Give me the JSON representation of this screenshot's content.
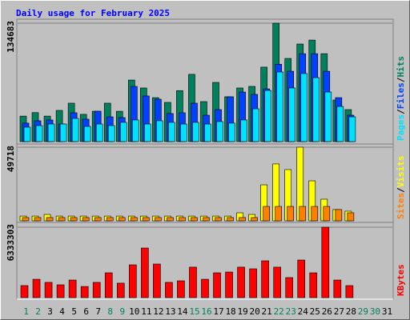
{
  "title": "Daily usage for February 2025",
  "legend_separator": "/",
  "chart_data": [
    {
      "type": "bar",
      "series": [
        {
          "name": "Hits",
          "color": "#00805c",
          "values": [
            29000,
            33000,
            29000,
            35500,
            43700,
            31000,
            34500,
            43700,
            34500,
            70000,
            61000,
            50000,
            44600,
            58000,
            76500,
            45500,
            67300,
            51000,
            61000,
            62800,
            84700,
            134683,
            94600,
            111000,
            115500,
            100000,
            47300,
            36400,
            null,
            null,
            null
          ]
        },
        {
          "name": "Files",
          "color": "#0040ff",
          "values": [
            21000,
            23700,
            24600,
            20000,
            32800,
            25500,
            34600,
            28200,
            27300,
            62800,
            51900,
            48200,
            31900,
            32800,
            43700,
            30000,
            36400,
            51000,
            56400,
            53700,
            60000,
            88000,
            80000,
            100000,
            100000,
            80000,
            50000,
            30000,
            null,
            null,
            null
          ]
        },
        {
          "name": "Pages",
          "color": "#00e0ff",
          "values": [
            16400,
            18200,
            20000,
            20000,
            26400,
            17300,
            20000,
            18200,
            21900,
            24600,
            20000,
            23700,
            21900,
            20000,
            21900,
            20000,
            22800,
            21000,
            24600,
            37300,
            58200,
            79200,
            61000,
            77400,
            72800,
            56400,
            40000,
            28200,
            null,
            null,
            null
          ]
        }
      ],
      "ylim": [
        0,
        134683
      ],
      "yticks": [
        134683
      ]
    },
    {
      "type": "bar",
      "series": [
        {
          "name": "Visits",
          "color": "#ffff00",
          "values": [
            3200,
            3200,
            4300,
            3200,
            3200,
            3200,
            3200,
            3200,
            3200,
            3200,
            3200,
            3200,
            3200,
            3200,
            3200,
            3200,
            3200,
            3200,
            5400,
            4300,
            24300,
            38400,
            34600,
            49718,
            27000,
            14600,
            7600,
            6500,
            null,
            null,
            null
          ]
        },
        {
          "name": "Sites",
          "color": "#ff8000",
          "values": [
            2200,
            2200,
            2200,
            2200,
            2200,
            2200,
            2200,
            2200,
            2200,
            2200,
            2200,
            2200,
            2200,
            2200,
            2200,
            2200,
            2200,
            2200,
            2200,
            2200,
            9700,
            9700,
            9700,
            9700,
            9700,
            9700,
            7600,
            5400,
            null,
            null,
            null
          ]
        }
      ],
      "ylim": [
        0,
        49718
      ],
      "yticks": [
        49718
      ]
    },
    {
      "type": "bar",
      "categories": [
        "1",
        "2",
        "3",
        "4",
        "5",
        "6",
        "7",
        "8",
        "9",
        "10",
        "11",
        "12",
        "13",
        "14",
        "15",
        "16",
        "17",
        "18",
        "19",
        "20",
        "21",
        "22",
        "23",
        "24",
        "25",
        "26",
        "27",
        "28",
        "29",
        "30",
        "31"
      ],
      "tick_label_colors": [
        "#00805c",
        "#00805c",
        "#000000",
        "#000000",
        "#000000",
        "#000000",
        "#000000",
        "#00805c",
        "#00805c",
        "#000000",
        "#000000",
        "#000000",
        "#000000",
        "#000000",
        "#00805c",
        "#00805c",
        "#000000",
        "#000000",
        "#000000",
        "#000000",
        "#000000",
        "#00805c",
        "#00805c",
        "#000000",
        "#000000",
        "#000000",
        "#000000",
        "#000000",
        "#00805c",
        "#00805c",
        "#000000"
      ],
      "series": [
        {
          "name": "KBytes",
          "color": "#ff0000",
          "values": [
            1080000,
            1650000,
            1370000,
            1150000,
            1580000,
            1000000,
            1370000,
            2230000,
            1300000,
            2950000,
            4460000,
            3020000,
            1370000,
            1510000,
            2740000,
            1650000,
            2230000,
            2300000,
            2740000,
            2590000,
            3310000,
            2740000,
            1800000,
            3380000,
            2230000,
            6333303,
            1580000,
            1080000,
            null,
            null,
            null
          ]
        }
      ],
      "ylim": [
        0,
        6333303
      ],
      "yticks": [
        6333303
      ]
    }
  ]
}
